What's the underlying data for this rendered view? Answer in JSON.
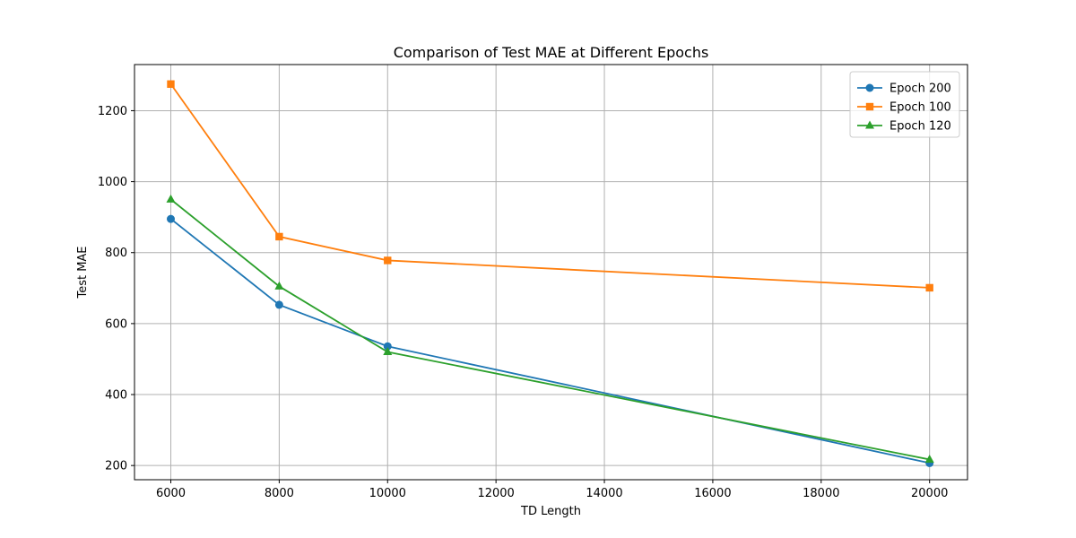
{
  "chart_data": {
    "type": "line",
    "title": "Comparison of Test MAE at Different Epochs",
    "xlabel": "TD Length",
    "ylabel": "Test MAE",
    "x": [
      6000,
      8000,
      10000,
      20000
    ],
    "xlim": [
      5330,
      20700
    ],
    "ylim": [
      160,
      1330
    ],
    "xticks": [
      6000,
      8000,
      10000,
      12000,
      14000,
      16000,
      18000,
      20000
    ],
    "yticks": [
      200,
      400,
      600,
      800,
      1000,
      1200
    ],
    "grid": true,
    "legend_position": "top-right",
    "series": [
      {
        "name": "Epoch 200",
        "values": [
          895,
          653,
          536,
          207
        ],
        "color": "#1f77b4",
        "marker": "circle"
      },
      {
        "name": "Epoch 100",
        "values": [
          1275,
          845,
          778,
          701
        ],
        "color": "#ff7f0e",
        "marker": "square"
      },
      {
        "name": "Epoch 120",
        "values": [
          950,
          705,
          520,
          217
        ],
        "color": "#2ca02c",
        "marker": "triangle"
      }
    ]
  }
}
